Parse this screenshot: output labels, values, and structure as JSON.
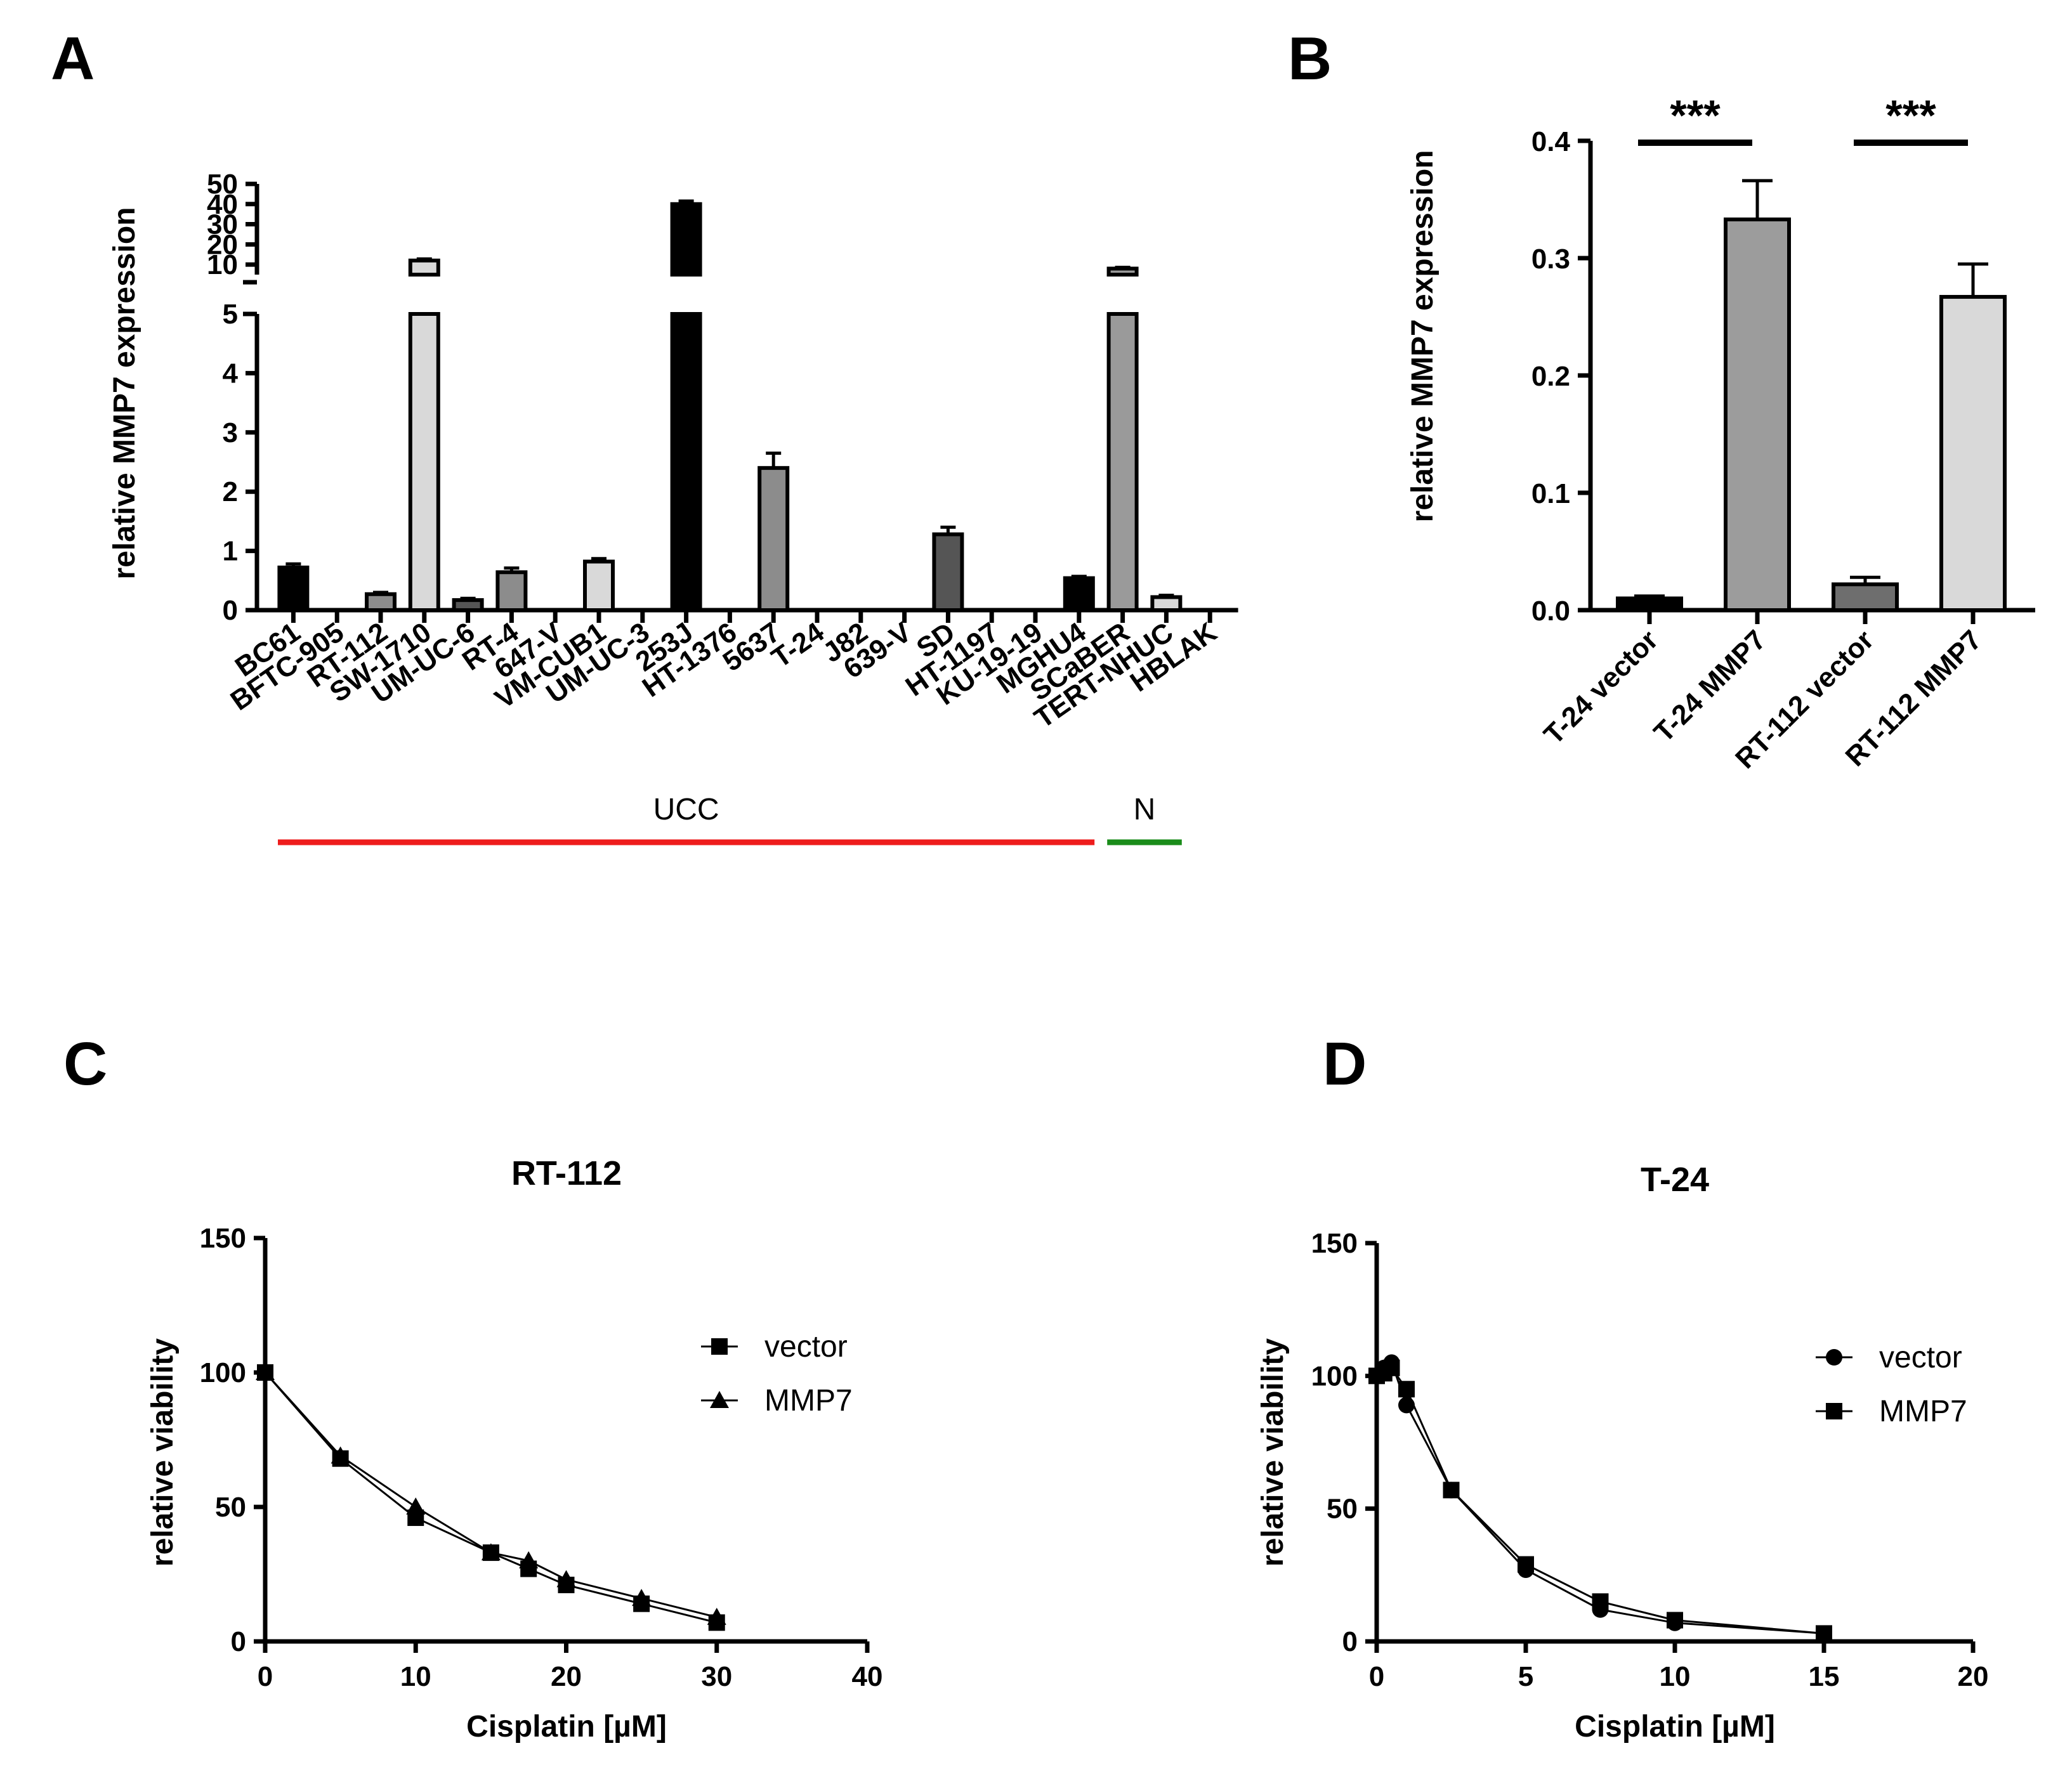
{
  "panels": {
    "A": {
      "letter": "A"
    },
    "B": {
      "letter": "B"
    },
    "C": {
      "letter": "C"
    },
    "D": {
      "letter": "D"
    }
  },
  "chart_data": [
    {
      "id": "A",
      "type": "bar",
      "ylabel": "relative MMP7 expression",
      "ylim_lower": [
        0,
        5
      ],
      "ylim_upper": [
        5,
        50
      ],
      "yticks_lower": [
        "0",
        "1",
        "2",
        "3",
        "4",
        "5"
      ],
      "yticks_upper": [
        "10",
        "20",
        "30",
        "40",
        "50"
      ],
      "categories": [
        "BC61",
        "BFTC-905",
        "RT-112",
        "SW-1710",
        "UM-UC-6",
        "RT-4",
        "647-V",
        "VM-CUB1",
        "UM-UC-3",
        "253J",
        "HT-1376",
        "5637",
        "T-24",
        "J82",
        "639-V",
        "SD",
        "HT-1197",
        "KU-19-19",
        "MGHU4",
        "SCaBER",
        "TERT-NHUC",
        "HBLAK"
      ],
      "values": [
        0.72,
        0.0,
        0.27,
        12.0,
        0.17,
        0.64,
        0.0,
        0.82,
        0.0,
        40.0,
        0.0,
        2.4,
        0.0,
        0.0,
        0.0,
        1.28,
        0.0,
        0.0,
        0.54,
        8.0,
        0.22,
        0.0
      ],
      "errors": [
        0.06,
        0,
        0.03,
        0.8,
        0.03,
        0.07,
        0,
        0.05,
        0,
        1.5,
        0,
        0.25,
        0,
        0,
        0,
        0.12,
        0,
        0,
        0.03,
        0.6,
        0.03,
        0
      ],
      "bar_colors": [
        "#000000",
        "#000000",
        "#8c8c8c",
        "#d9d9d9",
        "#555555",
        "#8c8c8c",
        "#000000",
        "#d9d9d9",
        "#000000",
        "#000000",
        "#000000",
        "#8c8c8c",
        "#000000",
        "#000000",
        "#000000",
        "#555555",
        "#000000",
        "#000000",
        "#000000",
        "#9a9a9a",
        "#d9d9d9",
        "#000000"
      ],
      "groups": [
        {
          "label": "UCC",
          "color": "#ee1c1c"
        },
        {
          "label": "N",
          "color": "#1a8c1a"
        }
      ]
    },
    {
      "id": "B",
      "type": "bar",
      "ylabel": "relative MMP7 expression",
      "ylim": [
        0,
        0.4
      ],
      "yticks": [
        "0.0",
        "0.1",
        "0.2",
        "0.3",
        "0.4"
      ],
      "categories": [
        "T-24 vector",
        "T-24 MMP7",
        "RT-112 vector",
        "RT-112 MMP7"
      ],
      "values": [
        0.01,
        0.333,
        0.022,
        0.267
      ],
      "errors": [
        0.002,
        0.033,
        0.006,
        0.028
      ],
      "bar_colors": [
        "#000000",
        "#9c9c9c",
        "#6e6e6e",
        "#d9d9d9"
      ],
      "significance": [
        {
          "label": "***",
          "from": 0,
          "to": 1
        },
        {
          "label": "***",
          "from": 2,
          "to": 3
        }
      ]
    },
    {
      "id": "C",
      "type": "line",
      "title": "RT-112",
      "xlabel": "Cisplatin [µM]",
      "ylabel": "relative viability",
      "xlim": [
        0,
        40
      ],
      "ylim": [
        0,
        150
      ],
      "xticks": [
        "0",
        "10",
        "20",
        "30",
        "40"
      ],
      "yticks": [
        "0",
        "50",
        "100",
        "150"
      ],
      "series": [
        {
          "name": "vector",
          "marker": "square",
          "x": [
            0,
            5,
            10,
            15,
            17.5,
            20,
            25,
            30
          ],
          "y": [
            100,
            68,
            46,
            33,
            27,
            21,
            14,
            7
          ]
        },
        {
          "name": "MMP7",
          "marker": "triangle",
          "x": [
            0,
            5,
            10,
            15,
            17.5,
            20,
            25,
            30
          ],
          "y": [
            100,
            69,
            50,
            33,
            30,
            23,
            16,
            9
          ]
        }
      ]
    },
    {
      "id": "D",
      "type": "line",
      "title": "T-24",
      "xlabel": "Cisplatin [µM]",
      "ylabel": "relative viability",
      "xlim": [
        0,
        20
      ],
      "ylim": [
        0,
        150
      ],
      "xticks": [
        "0",
        "5",
        "10",
        "15",
        "20"
      ],
      "yticks": [
        "0",
        "50",
        "100",
        "150"
      ],
      "series": [
        {
          "name": "vector",
          "marker": "circle",
          "x": [
            0,
            0.25,
            0.5,
            1,
            2.5,
            5,
            7.5,
            10,
            15
          ],
          "y": [
            100,
            103,
            105,
            89,
            57,
            27,
            12,
            7,
            3
          ]
        },
        {
          "name": "MMP7",
          "marker": "square",
          "x": [
            0,
            0.25,
            0.5,
            1,
            2.5,
            5,
            7.5,
            10,
            15
          ],
          "y": [
            100,
            101,
            103,
            95,
            57,
            29,
            15,
            8,
            3
          ]
        }
      ]
    }
  ]
}
